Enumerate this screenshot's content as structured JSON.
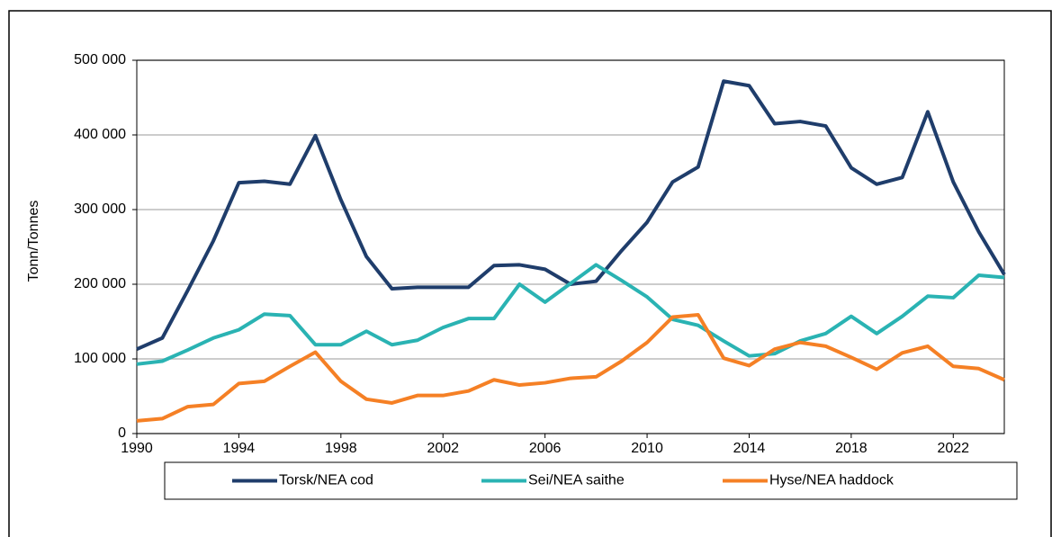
{
  "chart_data": {
    "type": "line",
    "y_label": "Tonn/Tonnes",
    "x": [
      1990,
      1991,
      1992,
      1993,
      1994,
      1995,
      1996,
      1997,
      1998,
      1999,
      2000,
      2001,
      2002,
      2003,
      2004,
      2005,
      2006,
      2007,
      2008,
      2009,
      2010,
      2011,
      2012,
      2013,
      2014,
      2015,
      2016,
      2017,
      2018,
      2019,
      2020,
      2021,
      2022,
      2023,
      2024
    ],
    "series": [
      {
        "name": "Torsk/NEA cod",
        "color": "#1f3d6b",
        "values": [
          113000,
          128000,
          192000,
          258000,
          336000,
          338000,
          334000,
          399000,
          313000,
          237000,
          194000,
          196000,
          196000,
          196000,
          225000,
          226000,
          220000,
          200000,
          204000,
          245000,
          283000,
          337000,
          357000,
          472000,
          466000,
          415000,
          418000,
          412000,
          356000,
          334000,
          343000,
          431000,
          337000,
          270000,
          213000
        ]
      },
      {
        "name": "Sei/NEA saithe",
        "color": "#2ab3b3",
        "values": [
          93000,
          97000,
          112000,
          128000,
          139000,
          160000,
          158000,
          119000,
          119000,
          137000,
          119000,
          125000,
          142000,
          154000,
          154000,
          200000,
          176000,
          201000,
          226000,
          205000,
          183000,
          153000,
          145000,
          124000,
          104000,
          107000,
          124000,
          134000,
          157000,
          134000,
          157000,
          184000,
          182000,
          212000,
          209000
        ]
      },
      {
        "name": "Hyse/NEA haddock",
        "color": "#f58025",
        "values": [
          17000,
          20000,
          36000,
          39000,
          67000,
          70000,
          90000,
          109000,
          70000,
          46000,
          41000,
          51000,
          51000,
          57000,
          72000,
          65000,
          68000,
          74000,
          76000,
          97000,
          122000,
          156000,
          159000,
          101000,
          91000,
          113000,
          122000,
          117000,
          102000,
          86000,
          108000,
          117000,
          90000,
          87000,
          72000
        ]
      }
    ],
    "xlim": [
      1990,
      2024
    ],
    "xticks": [
      1990,
      1994,
      1998,
      2002,
      2006,
      2010,
      2014,
      2018,
      2022
    ],
    "ylim": [
      0,
      500000
    ],
    "yticks": [
      0,
      {
        "value": 100000,
        "label": "100 000"
      },
      {
        "value": 200000,
        "label": "200 000"
      },
      {
        "value": 300000,
        "label": "300 000"
      },
      {
        "value": 400000,
        "label": "400 000"
      },
      {
        "value": 500000,
        "label": "500 000"
      }
    ],
    "grid": true,
    "legend": "bottom"
  }
}
